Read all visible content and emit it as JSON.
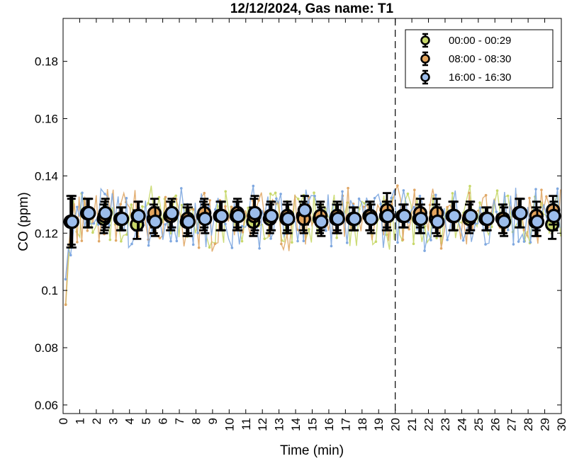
{
  "chart_data": {
    "type": "scatter",
    "title": "12/12/2024, Gas name: T1",
    "xlabel": "Time (min)",
    "ylabel": "CO (ppm)",
    "xlim": [
      0,
      30
    ],
    "ylim": [
      0.057,
      0.195
    ],
    "xticks": [
      0,
      1,
      2,
      3,
      4,
      5,
      6,
      7,
      8,
      9,
      10,
      11,
      12,
      13,
      14,
      15,
      16,
      17,
      18,
      19,
      20,
      21,
      22,
      23,
      24,
      25,
      26,
      27,
      28,
      29,
      30
    ],
    "yticks": [
      0.06,
      0.08,
      0.1,
      0.12,
      0.14,
      0.16,
      0.18
    ],
    "ytick_labels": [
      "0.06",
      "0.08",
      "0.1",
      "0.12",
      "0.14",
      "0.16",
      "0.18"
    ],
    "vline_x": 20,
    "vline_style": "dashed",
    "legend_position": "top-right",
    "grid": false,
    "series": [
      {
        "name": "00:00 - 00:29",
        "marker_color": "#c8d86a",
        "raw_color": "#c8d86a",
        "x": [
          0.5,
          1.5,
          2.5,
          3.5,
          4.5,
          5.5,
          6.5,
          7.5,
          8.5,
          9.5,
          10.5,
          11.5,
          12.5,
          13.5,
          14.5,
          15.5,
          16.5,
          17.5,
          18.5,
          19.5,
          20.5,
          21.5,
          22.5,
          23.5,
          24.5,
          25.5,
          26.5,
          27.5,
          28.5,
          29.5
        ],
        "y": [
          0.124,
          0.127,
          0.125,
          0.125,
          0.123,
          0.125,
          0.126,
          0.124,
          0.126,
          0.126,
          0.126,
          0.124,
          0.125,
          0.125,
          0.126,
          0.125,
          0.125,
          0.125,
          0.126,
          0.126,
          0.126,
          0.125,
          0.125,
          0.126,
          0.125,
          0.125,
          0.125,
          0.127,
          0.124,
          0.123
        ],
        "err": [
          0.009,
          0.005,
          0.005,
          0.004,
          0.005,
          0.005,
          0.005,
          0.005,
          0.005,
          0.005,
          0.005,
          0.005,
          0.005,
          0.005,
          0.005,
          0.005,
          0.005,
          0.004,
          0.005,
          0.005,
          0.004,
          0.005,
          0.005,
          0.005,
          0.005,
          0.004,
          0.005,
          0.005,
          0.005,
          0.005
        ]
      },
      {
        "name": "08:00 - 08:30",
        "marker_color": "#e3a45d",
        "raw_color": "#e0a766",
        "x": [
          0.5,
          1.5,
          2.5,
          3.5,
          4.5,
          5.5,
          6.5,
          7.5,
          8.5,
          9.5,
          10.5,
          11.5,
          12.5,
          13.5,
          14.5,
          15.5,
          16.5,
          17.5,
          18.5,
          19.5,
          20.5,
          21.5,
          22.5,
          23.5,
          24.5,
          25.5,
          26.5,
          27.5,
          28.5,
          29.5
        ],
        "y": [
          0.124,
          0.127,
          0.126,
          0.125,
          0.126,
          0.127,
          0.126,
          0.125,
          0.127,
          0.126,
          0.127,
          0.126,
          0.126,
          0.126,
          0.125,
          0.126,
          0.126,
          0.125,
          0.126,
          0.128,
          0.126,
          0.127,
          0.127,
          0.126,
          0.126,
          0.125,
          0.125,
          0.127,
          0.126,
          0.128
        ],
        "err": [
          0.008,
          0.005,
          0.005,
          0.004,
          0.005,
          0.005,
          0.005,
          0.005,
          0.005,
          0.005,
          0.005,
          0.006,
          0.005,
          0.005,
          0.005,
          0.005,
          0.005,
          0.004,
          0.005,
          0.006,
          0.004,
          0.005,
          0.005,
          0.005,
          0.005,
          0.004,
          0.005,
          0.005,
          0.005,
          0.005
        ]
      },
      {
        "name": "16:00 - 16:30",
        "marker_color": "#9cbdeb",
        "raw_color": "#7fa8e0",
        "x": [
          0.5,
          1.5,
          2.5,
          3.5,
          4.5,
          5.5,
          6.5,
          7.5,
          8.5,
          9.5,
          10.5,
          11.5,
          12.5,
          13.5,
          14.5,
          15.5,
          16.5,
          17.5,
          18.5,
          19.5,
          20.5,
          21.5,
          22.5,
          23.5,
          24.5,
          25.5,
          26.5,
          27.5,
          28.5,
          29.5
        ],
        "y": [
          0.124,
          0.127,
          0.127,
          0.125,
          0.126,
          0.124,
          0.127,
          0.124,
          0.125,
          0.126,
          0.126,
          0.127,
          0.126,
          0.125,
          0.128,
          0.124,
          0.125,
          0.125,
          0.125,
          0.126,
          0.126,
          0.125,
          0.124,
          0.126,
          0.126,
          0.125,
          0.124,
          0.127,
          0.124,
          0.126
        ],
        "err": [
          0.009,
          0.005,
          0.005,
          0.004,
          0.005,
          0.005,
          0.005,
          0.005,
          0.005,
          0.005,
          0.005,
          0.006,
          0.005,
          0.005,
          0.005,
          0.005,
          0.005,
          0.004,
          0.005,
          0.005,
          0.004,
          0.005,
          0.005,
          0.005,
          0.005,
          0.004,
          0.005,
          0.005,
          0.005,
          0.005
        ]
      }
    ]
  }
}
